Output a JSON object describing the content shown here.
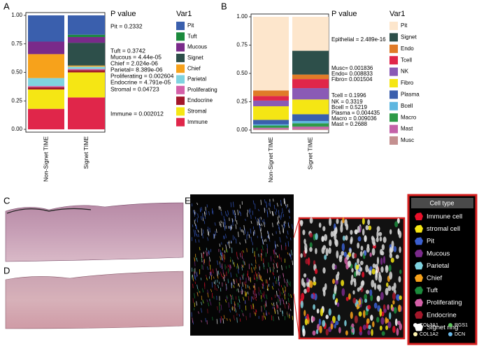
{
  "panels": {
    "a": "A",
    "b": "B",
    "c": "C",
    "d": "D",
    "e": "E"
  },
  "chart_data": [
    {
      "type": "bar",
      "stacked": true,
      "categories": [
        "Non-Signet TIME",
        "Signet TIME"
      ],
      "ylim": [
        0,
        1
      ],
      "yticks": [
        {
          "value": 0,
          "label": "0.00"
        },
        0.25,
        {
          "value": 0.5,
          "label": "0.50"
        },
        0.75,
        {
          "value": 1,
          "label": "1.00"
        }
      ],
      "legend_title": "Var1",
      "series": [
        {
          "name": "Pit",
          "color": "#3a5fad",
          "values": [
            0.23,
            0.17
          ]
        },
        {
          "name": "Tuft",
          "color": "#1b8a3c",
          "values": [
            0,
            0.02
          ]
        },
        {
          "name": "Mucous",
          "color": "#7a2a8a",
          "values": [
            0.11,
            0.05
          ]
        },
        {
          "name": "Signet",
          "color": "#2d4f4a",
          "values": [
            0,
            0.2
          ]
        },
        {
          "name": "Chief",
          "color": "#f7a21b",
          "values": [
            0.21,
            0.01
          ]
        },
        {
          "name": "Parietal",
          "color": "#7fd3e0",
          "values": [
            0.07,
            0.02
          ]
        },
        {
          "name": "Proliferating",
          "color": "#d460a8",
          "values": [
            0.01,
            0.01
          ]
        },
        {
          "name": "Endocrine",
          "color": "#a3172a",
          "values": [
            0.02,
            0.02
          ]
        },
        {
          "name": "Stromal",
          "color": "#f5e614",
          "values": [
            0.17,
            0.22
          ]
        },
        {
          "name": "Immune",
          "color": "#e0264a",
          "values": [
            0.18,
            0.28
          ]
        }
      ],
      "annotation_title": "P value",
      "annotations": [
        "Pit = 0.2332",
        "Tuft = 0.3742",
        "Mucous = 4.44e-05",
        "Chief = 2.024e-06",
        "Parietal= 8.389e-06",
        "Proliferating = 0.002604",
        "Endocrine = 4.791e-05",
        "Stromal = 0.04723",
        "Immune = 0.002012"
      ]
    },
    {
      "type": "bar",
      "stacked": true,
      "categories": [
        "Non-Signet TIME",
        "Signet TIME"
      ],
      "ylim": [
        0,
        1
      ],
      "yticks": [
        {
          "value": 0,
          "label": "0.00"
        },
        0.25,
        {
          "value": 0.5,
          "label": "0.50"
        },
        0.75,
        {
          "value": 1,
          "label": "1.00"
        }
      ],
      "legend_title": "Var1",
      "series": [
        {
          "name": "Pit",
          "color": "#fde6cc",
          "values": [
            0.65,
            0.3
          ]
        },
        {
          "name": "Signet",
          "color": "#2d4f4a",
          "values": [
            0,
            0.21
          ]
        },
        {
          "name": "Endo",
          "color": "#e07b28",
          "values": [
            0.05,
            0.04
          ]
        },
        {
          "name": "Tcell",
          "color": "#e0264a",
          "values": [
            0.04,
            0.08
          ]
        },
        {
          "name": "NK",
          "color": "#8a5ab5",
          "values": [
            0.05,
            0.1
          ]
        },
        {
          "name": "Fibro",
          "color": "#f5e614",
          "values": [
            0.12,
            0.13
          ]
        },
        {
          "name": "Plasma",
          "color": "#3a5fad",
          "values": [
            0.04,
            0.06
          ]
        },
        {
          "name": "Bcell",
          "color": "#5fb7e0",
          "values": [
            0.01,
            0.02
          ]
        },
        {
          "name": "Macro",
          "color": "#2e9a48",
          "values": [
            0.02,
            0.03
          ]
        },
        {
          "name": "Mast",
          "color": "#c462a8",
          "values": [
            0.01,
            0.02
          ]
        },
        {
          "name": "Musc",
          "color": "#c49090",
          "values": [
            0.01,
            0.01
          ]
        }
      ],
      "annotation_title": "P value",
      "annotations": [
        "Epithelial = 2.489e-16",
        "Musc= 0.001836",
        "Endo= 0.008833",
        "Fibro= 0.001504",
        "Tcell = 0.1996",
        "NK = 0.3319",
        "Bcell = 0.5219",
        "Plasma = 0.004435",
        "Macro = 0.009036",
        "Mast = 0.2688"
      ]
    }
  ],
  "cell_type_legend": {
    "title": "Cell type",
    "items": [
      {
        "label": "Immune cell",
        "color": "#e8102a"
      },
      {
        "label": "stromal cell",
        "color": "#f5e614"
      },
      {
        "label": "Pit",
        "color": "#3a5fd0"
      },
      {
        "label": "Mucous",
        "color": "#7a2a8a"
      },
      {
        "label": "Parietal",
        "color": "#7fd3e0"
      },
      {
        "label": "Chief",
        "color": "#f7a21b"
      },
      {
        "label": "Tuft",
        "color": "#1b8a3c"
      },
      {
        "label": "Proliferating",
        "color": "#d460a8"
      },
      {
        "label": "Endocrine",
        "color": "#a3172a"
      },
      {
        "label": "Signet ring",
        "color": "#ffffff"
      }
    ],
    "markers": [
      {
        "label": "COL3A1",
        "color": "#ffffff"
      },
      {
        "label": "RGS1",
        "color": "#5cc45c"
      },
      {
        "label": "COL1A2",
        "color": "#fff5b0"
      },
      {
        "label": "DCN",
        "color": "#6ab8e8"
      }
    ]
  }
}
